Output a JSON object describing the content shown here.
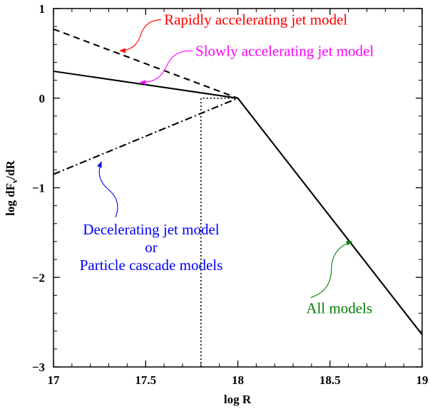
{
  "chart_data": {
    "type": "line",
    "title": "",
    "xlabel": "log R",
    "ylabel": "log dFν/dR",
    "ylabel_parts": {
      "main": "log dF",
      "sub": "ν",
      "tail": "/dR"
    },
    "xlim": [
      17,
      19
    ],
    "ylim": [
      -3,
      1
    ],
    "grid": false,
    "legend": "none",
    "x_ticks": [
      17,
      17.5,
      18,
      18.5,
      19
    ],
    "x_tick_labels": [
      "17",
      "17.5",
      "18",
      "18.5",
      "19"
    ],
    "y_ticks": [
      -3,
      -2,
      -1,
      0,
      1
    ],
    "y_tick_labels": [
      "−3",
      "−2",
      "−1",
      "0",
      "1"
    ],
    "series": [
      {
        "style": "dashed",
        "color": "#000000",
        "points": [
          [
            17,
            0.77
          ],
          [
            18,
            0.0
          ]
        ]
      },
      {
        "style": "solid",
        "color": "#000000",
        "points": [
          [
            17,
            0.3
          ],
          [
            18,
            0.0
          ]
        ]
      },
      {
        "style": "dashdot",
        "color": "#000000",
        "points": [
          [
            17,
            -0.85
          ],
          [
            18,
            0.0
          ]
        ]
      },
      {
        "style": "solid",
        "color": "#000000",
        "points": [
          [
            18,
            0.0
          ],
          [
            19,
            -2.64
          ]
        ]
      },
      {
        "style": "dotted",
        "color": "#000000",
        "points": [
          [
            17.8,
            -3.0
          ],
          [
            17.8,
            0.0
          ],
          [
            18,
            0.0
          ]
        ]
      }
    ],
    "annotations": [
      {
        "text": "Rapidly accelerating jet model",
        "color": "#ff0000",
        "point": [
          17.36,
          0.53
        ],
        "anchor": "start",
        "label_at": [
          17.6,
          0.82
        ]
      },
      {
        "text": "Slowly accelerating jet model",
        "color": "#ff00ff",
        "point": [
          17.47,
          0.18
        ],
        "anchor": "start",
        "label_at": [
          17.77,
          0.47
        ]
      },
      {
        "text": "Decelerating jet model",
        "color": "#0000ff",
        "point": [
          17.26,
          -0.71
        ],
        "anchor": "middle",
        "label_at": [
          17.53,
          -1.52
        ]
      },
      {
        "text": "or",
        "color": "#0000ff",
        "anchor": "middle",
        "label_at": [
          17.53,
          -1.72
        ]
      },
      {
        "text": "Particle cascade models",
        "color": "#0000ff",
        "anchor": "middle",
        "label_at": [
          17.53,
          -1.92
        ]
      },
      {
        "text": "All models",
        "color": "#008000",
        "point": [
          18.62,
          -1.6
        ],
        "anchor": "middle",
        "label_at": [
          18.55,
          -2.4
        ]
      }
    ]
  }
}
